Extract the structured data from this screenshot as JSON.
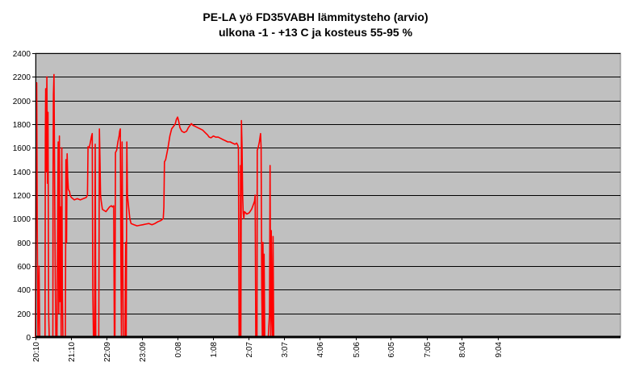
{
  "chart_data": {
    "type": "line",
    "title": "PE-LA yö FD35VABH lämmitysteho (arvio)",
    "subtitle": "ulkona -1 - +13 C ja kosteus 55-95 %",
    "xlabel": "",
    "ylabel": "",
    "ylim": [
      0,
      2400
    ],
    "y_ticks": [
      0,
      200,
      400,
      600,
      800,
      1000,
      1200,
      1400,
      1600,
      1800,
      2000,
      2200,
      2400
    ],
    "x_range_minutes": [
      1210,
      2190
    ],
    "x_tick_labels": [
      "20:10",
      "21:10",
      "22:09",
      "23:09",
      "0:08",
      "1:08",
      "2:07",
      "3:07",
      "4:06",
      "5:06",
      "6:05",
      "7:05",
      "8:04",
      "9:04"
    ],
    "x_tick_minutes": [
      1210,
      1270,
      1329,
      1389,
      1448,
      1508,
      1567,
      1627,
      1686,
      1746,
      1805,
      1865,
      1924,
      1984
    ],
    "grid": true,
    "legend": "none",
    "colors": {
      "series": "#ff0000",
      "plot_bg": "#c0c0c0",
      "grid": "#000000"
    },
    "series": [
      {
        "name": "",
        "points": [
          [
            1210,
            0
          ],
          [
            1211,
            1500
          ],
          [
            1212,
            2150
          ],
          [
            1213,
            900
          ],
          [
            1214,
            0
          ],
          [
            1216,
            600
          ],
          [
            1217,
            0
          ],
          [
            1226,
            0
          ],
          [
            1226.5,
            1700
          ],
          [
            1227,
            2100
          ],
          [
            1228,
            1400
          ],
          [
            1229,
            2200
          ],
          [
            1230,
            1300
          ],
          [
            1231,
            1900
          ],
          [
            1232,
            200
          ],
          [
            1233,
            0
          ],
          [
            1239,
            0
          ],
          [
            1239.5,
            1400
          ],
          [
            1240,
            2050
          ],
          [
            1241,
            2220
          ],
          [
            1242,
            1300
          ],
          [
            1243,
            600
          ],
          [
            1244,
            0
          ],
          [
            1246,
            0
          ],
          [
            1247,
            900
          ],
          [
            1248,
            1650
          ],
          [
            1249,
            200
          ],
          [
            1250,
            1700
          ],
          [
            1251,
            300
          ],
          [
            1252,
            1100
          ],
          [
            1253,
            0
          ],
          [
            1254,
            1600
          ],
          [
            1255,
            400
          ],
          [
            1256,
            0
          ],
          [
            1260,
            0
          ],
          [
            1261,
            1500
          ],
          [
            1262,
            800
          ],
          [
            1263,
            1550
          ],
          [
            1264,
            1350
          ],
          [
            1265,
            1250
          ],
          [
            1267,
            1230
          ],
          [
            1268,
            1200
          ],
          [
            1270,
            1180
          ],
          [
            1275,
            1160
          ],
          [
            1280,
            1170
          ],
          [
            1285,
            1160
          ],
          [
            1290,
            1170
          ],
          [
            1295,
            1180
          ],
          [
            1297,
            1200
          ],
          [
            1298,
            1610
          ],
          [
            1300,
            1600
          ],
          [
            1302,
            1650
          ],
          [
            1304,
            1700
          ],
          [
            1305,
            1720
          ],
          [
            1306,
            400
          ],
          [
            1307,
            0
          ],
          [
            1309,
            0
          ],
          [
            1309.5,
            800
          ],
          [
            1310,
            1630
          ],
          [
            1311,
            0
          ],
          [
            1313,
            0
          ],
          [
            1316,
            0
          ],
          [
            1317,
            1760
          ],
          [
            1318,
            1500
          ],
          [
            1319,
            1200
          ],
          [
            1320,
            1150
          ],
          [
            1322,
            1080
          ],
          [
            1325,
            1070
          ],
          [
            1328,
            1060
          ],
          [
            1331,
            1080
          ],
          [
            1334,
            1100
          ],
          [
            1337,
            1110
          ],
          [
            1339,
            1100
          ],
          [
            1341,
            1110
          ],
          [
            1342,
            0
          ],
          [
            1343,
            0
          ],
          [
            1344,
            1560
          ],
          [
            1346,
            1580
          ],
          [
            1348,
            1650
          ],
          [
            1350,
            1700
          ],
          [
            1351,
            1740
          ],
          [
            1352,
            1760
          ],
          [
            1353,
            700
          ],
          [
            1354,
            0
          ],
          [
            1355,
            1650
          ],
          [
            1356,
            900
          ],
          [
            1357,
            0
          ],
          [
            1360,
            0
          ],
          [
            1361,
            800
          ],
          [
            1362,
            0
          ],
          [
            1363,
            1650
          ],
          [
            1364,
            1200
          ],
          [
            1366,
            1100
          ],
          [
            1368,
            1000
          ],
          [
            1370,
            960
          ],
          [
            1375,
            950
          ],
          [
            1380,
            940
          ],
          [
            1385,
            945
          ],
          [
            1390,
            950
          ],
          [
            1395,
            955
          ],
          [
            1400,
            960
          ],
          [
            1405,
            950
          ],
          [
            1410,
            960
          ],
          [
            1415,
            975
          ],
          [
            1420,
            985
          ],
          [
            1424,
            1000
          ],
          [
            1425,
            1100
          ],
          [
            1426,
            1480
          ],
          [
            1428,
            1500
          ],
          [
            1432,
            1600
          ],
          [
            1435,
            1700
          ],
          [
            1438,
            1760
          ],
          [
            1441,
            1780
          ],
          [
            1444,
            1800
          ],
          [
            1446,
            1840
          ],
          [
            1448,
            1860
          ],
          [
            1450,
            1820
          ],
          [
            1452,
            1770
          ],
          [
            1455,
            1740
          ],
          [
            1459,
            1730
          ],
          [
            1463,
            1740
          ],
          [
            1466,
            1770
          ],
          [
            1469,
            1790
          ],
          [
            1471,
            1805
          ],
          [
            1474,
            1790
          ],
          [
            1478,
            1780
          ],
          [
            1482,
            1770
          ],
          [
            1486,
            1760
          ],
          [
            1490,
            1750
          ],
          [
            1494,
            1730
          ],
          [
            1498,
            1710
          ],
          [
            1501,
            1690
          ],
          [
            1504,
            1685
          ],
          [
            1508,
            1700
          ],
          [
            1512,
            1690
          ],
          [
            1516,
            1690
          ],
          [
            1520,
            1680
          ],
          [
            1524,
            1670
          ],
          [
            1528,
            1660
          ],
          [
            1532,
            1650
          ],
          [
            1536,
            1650
          ],
          [
            1540,
            1640
          ],
          [
            1544,
            1630
          ],
          [
            1547,
            1640
          ],
          [
            1549,
            1620
          ],
          [
            1550,
            1600
          ],
          [
            1551,
            0
          ],
          [
            1553,
            0
          ],
          [
            1553.5,
            1450
          ],
          [
            1554,
            0
          ],
          [
            1555,
            1830
          ],
          [
            1556,
            1600
          ],
          [
            1557,
            1200
          ],
          [
            1558,
            1050
          ],
          [
            1559,
            1000
          ],
          [
            1560,
            1060
          ],
          [
            1564,
            1040
          ],
          [
            1568,
            1050
          ],
          [
            1572,
            1080
          ],
          [
            1575,
            1120
          ],
          [
            1577,
            1150
          ],
          [
            1578,
            1200
          ],
          [
            1579,
            0
          ],
          [
            1581,
            0
          ],
          [
            1581.5,
            1580
          ],
          [
            1583,
            1600
          ],
          [
            1585,
            1650
          ],
          [
            1587,
            1720
          ],
          [
            1588,
            1600
          ],
          [
            1589,
            400
          ],
          [
            1590,
            0
          ],
          [
            1591,
            800
          ],
          [
            1592,
            0
          ],
          [
            1593,
            700
          ],
          [
            1594,
            0
          ],
          [
            1596,
            0
          ],
          [
            1600,
            0
          ],
          [
            1602,
            200
          ],
          [
            1603,
            1450
          ],
          [
            1604,
            0
          ],
          [
            1605,
            900
          ],
          [
            1606,
            200
          ],
          [
            1607,
            0
          ],
          [
            1608,
            850
          ],
          [
            1609,
            0
          ],
          [
            1620,
            0
          ],
          [
            2190,
            0
          ]
        ]
      }
    ]
  }
}
